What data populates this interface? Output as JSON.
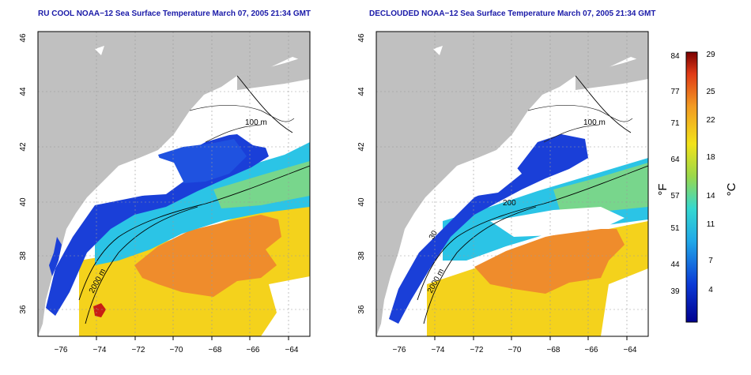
{
  "maps": [
    {
      "title": "RU COOL NOAA−12 Sea Surface Temperature March 07, 2005 21:34 GMT",
      "contour_labels": [
        "100 m",
        "2000 m"
      ]
    },
    {
      "title": "DECLOUDED NOAA−12 Sea Surface Temperature March 07, 2005 21:34 GMT",
      "contour_labels": [
        "100 m",
        "200",
        "30",
        "2000 m"
      ]
    }
  ],
  "axes": {
    "x_ticks": [
      "−76",
      "−74",
      "−72",
      "−70",
      "−68",
      "−66",
      "−64"
    ],
    "y_ticks": [
      "36",
      "38",
      "40",
      "42",
      "44",
      "46"
    ]
  },
  "colorbar": {
    "f_label": "°F",
    "c_label": "°C",
    "f_ticks": [
      "84",
      "77",
      "71",
      "64",
      "57",
      "51",
      "44",
      "39"
    ],
    "c_ticks": [
      "29",
      "25",
      "22",
      "18",
      "14",
      "11",
      "7",
      "4"
    ]
  },
  "colors": {
    "land": "#c0c0c0",
    "cloud": "#ffffff",
    "cold": "#1a3fd8",
    "cyan": "#29c2e8",
    "green": "#7ad88a",
    "yellow": "#f4d21c",
    "orange": "#f08a28",
    "red": "#c81e14",
    "title": "#1a1aa8"
  }
}
